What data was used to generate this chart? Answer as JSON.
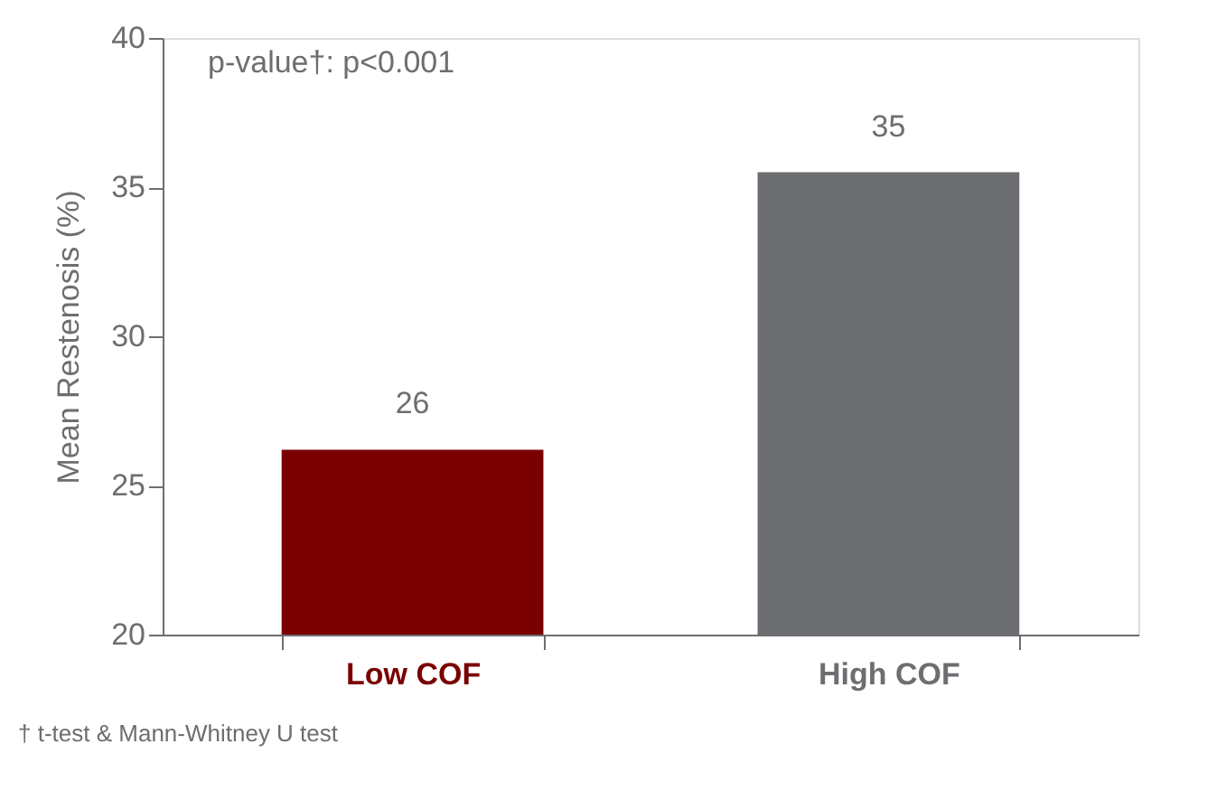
{
  "chart_data": {
    "type": "bar",
    "ylabel": "Mean Restenosis (%)",
    "categories": [
      "Low COF",
      "High COF"
    ],
    "values": [
      26.2,
      35.5
    ],
    "colors": [
      "#7a0000",
      "#6d6e71"
    ],
    "value_labels": [
      "26",
      "35"
    ],
    "ylim": [
      20,
      40
    ],
    "yticks": [
      20,
      25,
      30,
      35,
      40
    ],
    "grid": false,
    "annotations": [
      "p-value†: p<0.001",
      "† t-test & Mann-Whitney U test"
    ]
  }
}
